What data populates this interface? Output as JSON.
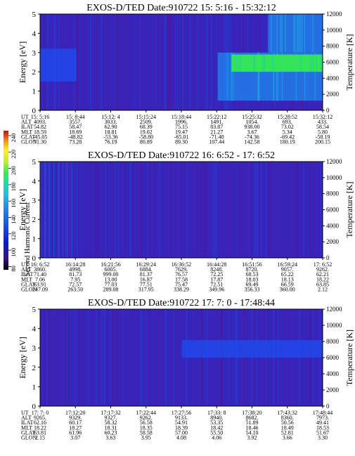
{
  "colorbar": {
    "label": "Second Harmonic Current",
    "ticks": [
      "240",
      "220",
      "200",
      "180",
      "160",
      "140",
      "120",
      "100",
      "80"
    ],
    "colors": [
      "#000000",
      "#3b0f84",
      "#0b1ae0",
      "#1e4ef0",
      "#1e88f0",
      "#19c2e0",
      "#12e3a8",
      "#35f04a",
      "#c6f020",
      "#fff21a",
      "#f5a00a",
      "#e8380a",
      "#d0100a"
    ]
  },
  "ephemeris_labels": [
    "UT",
    "ALT",
    "ILAT",
    "MLT",
    "GLAT",
    "GLON"
  ],
  "panels": [
    {
      "title": "EXOS-D/TED   Date:910722  15: 5:16 - 15:32:12",
      "ylabel": "Energy [eV]",
      "y2label": "Temperature [K]",
      "yticks": [
        "0",
        "1",
        "2",
        "3",
        "4",
        "5"
      ],
      "y2ticks": [
        "0",
        "2000",
        "4000",
        "6000",
        "8000",
        "10000",
        "12000"
      ],
      "columns": [
        [
          "15: 5:16",
          "4093.",
          "54.82",
          "18.59",
          "-45.05",
          "71.30"
        ],
        [
          "15: 8:44",
          "3557.",
          "58.47",
          "18.69",
          "-48.82",
          "73.28"
        ],
        [
          "15:12: 4",
          "3033.",
          "62.90",
          "18.81",
          "-53.36",
          "76.19"
        ],
        [
          "15:15:24",
          "2509.",
          "68.39",
          "19.02",
          "-58.80",
          "80.89"
        ],
        [
          "15:18:44",
          "1996.",
          "75.15",
          "19.47",
          "-65.01",
          "89.30"
        ],
        [
          "15:22:12",
          "1491.",
          "83.87",
          "21.27",
          "-71.40",
          "107.44"
        ],
        [
          "15:25:32",
          "1054.",
          "938.00",
          "3.67",
          "-74.36",
          "142.58"
        ],
        [
          "15:28:52",
          "693.",
          "73.02",
          "5.34",
          "-69.42",
          "180.19"
        ],
        [
          "15:32:12",
          "433.",
          "58.54",
          "5.80",
          "-58.19",
          "200.15"
        ]
      ]
    },
    {
      "title": "EXOS-D/TED   Date:910722  16: 6:52 - 17: 6:52",
      "ylabel": "Energy [eV]",
      "y2label": "Temperature [K]",
      "yticks": [
        "0",
        "1",
        "2",
        "3",
        "4",
        "5"
      ],
      "y2ticks": [
        "0",
        "2000",
        "4000",
        "6000",
        "8000",
        "10000",
        "12000"
      ],
      "columns": [
        [
          "16: 6:52",
          "3860.",
          "71.40",
          "7.06",
          "63.91",
          "247.09"
        ],
        [
          "16:14:28",
          "4998.",
          "81.73",
          "7.95",
          "72.57",
          "263.50"
        ],
        [
          "16:21:56",
          "6005.",
          "999.00",
          "13.00",
          "77.03",
          "289.08"
        ],
        [
          "16:29:24",
          "6884.",
          "81.37",
          "16.87",
          "77.51",
          "317.95"
        ],
        [
          "16:36:52",
          "7629.",
          "76.57",
          "17.58",
          "75.47",
          "338.29"
        ],
        [
          "16:44:28",
          "8248.",
          "72.25",
          "17.87",
          "72.51",
          "349.96"
        ],
        [
          "16:51:56",
          "8720.",
          "68.53",
          "18.03",
          "69.49",
          "356.33"
        ],
        [
          "16:59:24",
          "9057.",
          "65.22",
          "18.13",
          "66.59",
          "360.00"
        ],
        [
          "17: 6:52",
          "9262.",
          "62.21",
          "18.22",
          "63.85",
          "2.12"
        ]
      ]
    },
    {
      "title": "EXOS-D/TED   Date:910722  17: 7: 0 - 17:48:44",
      "ylabel": "Energy [eV]",
      "y2label": "Temperature [K]",
      "yticks": [
        "0",
        "1",
        "2",
        "3",
        "4",
        "5"
      ],
      "y2ticks": [
        "0",
        "2000",
        "4000",
        "6000",
        "8000",
        "10000",
        "12000"
      ],
      "columns": [
        [
          "17: 7: 0",
          "9265.",
          "62.16",
          "18.22",
          "63.81",
          "2.15"
        ],
        [
          "17:12:20",
          "9329.",
          "60.17",
          "18.27",
          "61.96",
          "3.07"
        ],
        [
          "17:17:32",
          "9327.",
          "58.32",
          "18.31",
          "60.23",
          "3.63"
        ],
        [
          "17:22:44",
          "9262.",
          "56.58",
          "18.35",
          "58.58",
          "3.95"
        ],
        [
          "17:27:56",
          "9133.",
          "54.91",
          "18.39",
          "57.00",
          "4.08"
        ],
        [
          "17:33: 8",
          "8940.",
          "53.35",
          "18.42",
          "55.50",
          "4.06"
        ],
        [
          "17:38:20",
          "8682.",
          "51.89",
          "18.46",
          "54.10",
          "3.92"
        ],
        [
          "17:43:32",
          "8360.",
          "50.56",
          "18.49",
          "52.81",
          "3.66"
        ],
        [
          "17:48:44",
          "7973.",
          "49.41",
          "18.53",
          "51.67",
          "3.30"
        ]
      ]
    }
  ],
  "chart_data": [
    {
      "type": "heatmap",
      "title": "EXOS-D/TED   Date:910722  15: 5:16 - 15:32:12",
      "xlabel": "UT",
      "ylabel": "Energy [eV]",
      "y2label": "Temperature [K]",
      "ylim": [
        0,
        5
      ],
      "y2lim": [
        0,
        12000
      ],
      "x_range": [
        "15: 5:16",
        "15:32:12"
      ],
      "colorbar_range": [
        80,
        240
      ],
      "colorbar_label": "Second Harmonic Current",
      "features": [
        {
          "x_from": "15: 5:16",
          "x_to": "15: 8:44",
          "energy_from": 1.5,
          "energy_to": 3.2,
          "level": "elevated"
        },
        {
          "x_from": "15:22:12",
          "x_to": "15:32:12",
          "energy_from": 0.5,
          "energy_to": 3.0,
          "level": "high"
        },
        {
          "x_from": "15:23:30",
          "x_to": "15:32:12",
          "energy_from": 2.0,
          "energy_to": 2.9,
          "level": "very high"
        },
        {
          "x_from": "15:27:00",
          "x_to": "15:32:12",
          "energy_from": 3.0,
          "energy_to": 5.0,
          "level": "high"
        }
      ]
    },
    {
      "type": "heatmap",
      "title": "EXOS-D/TED   Date:910722  16: 6:52 - 17: 6:52",
      "xlabel": "UT",
      "ylabel": "Energy [eV]",
      "y2label": "Temperature [K]",
      "ylim": [
        0,
        5
      ],
      "y2lim": [
        0,
        12000
      ],
      "x_range": [
        "16: 6:52",
        "17: 6:52"
      ],
      "colorbar_range": [
        80,
        240
      ],
      "features": [
        {
          "x_from": "16: 6:52",
          "x_to": "16:14:28",
          "energy_from": 0.0,
          "energy_to": 5.0,
          "level": "streaks"
        }
      ]
    },
    {
      "type": "heatmap",
      "title": "EXOS-D/TED   Date:910722  17: 7: 0 - 17:48:44",
      "xlabel": "UT",
      "ylabel": "Energy [eV]",
      "y2label": "Temperature [K]",
      "ylim": [
        0,
        5
      ],
      "y2lim": [
        0,
        12000
      ],
      "x_range": [
        "17: 7: 0",
        "17:48:44"
      ],
      "colorbar_range": [
        80,
        240
      ],
      "features": [
        {
          "x_from": "17:27:56",
          "x_to": "17:48:44",
          "energy_from": 2.5,
          "energy_to": 3.4,
          "level": "elevated"
        }
      ]
    }
  ]
}
